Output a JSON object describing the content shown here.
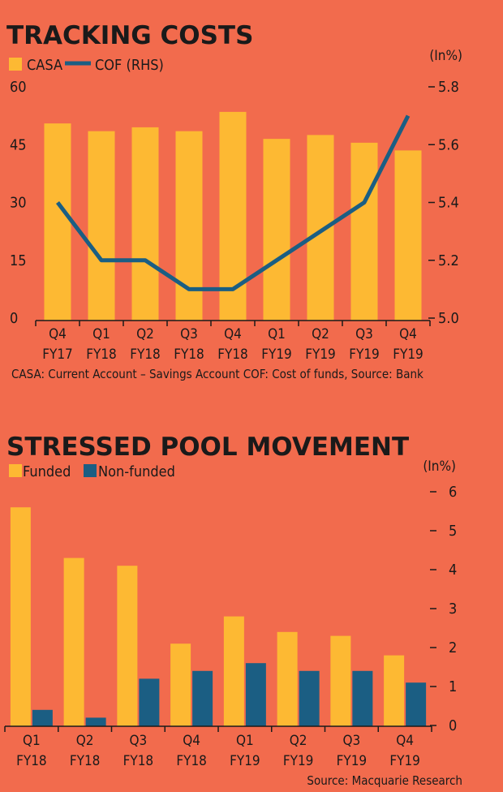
{
  "chart_data": [
    {
      "type": "bar",
      "title": "TRACKING COSTS",
      "unit": "(In%)",
      "categories": [
        [
          "Q4",
          "FY17"
        ],
        [
          "Q1",
          "FY18"
        ],
        [
          "Q2",
          "FY18"
        ],
        [
          "Q3",
          "FY18"
        ],
        [
          "Q4",
          "FY18"
        ],
        [
          "Q1",
          "FY19"
        ],
        [
          "Q2",
          "FY19"
        ],
        [
          "Q3",
          "FY19"
        ],
        [
          "Q4",
          "FY19"
        ]
      ],
      "series": [
        {
          "name": "CASA",
          "type": "bar",
          "axis": "left",
          "color": "#FDB933",
          "values": [
            50.5,
            48.5,
            49.5,
            48.5,
            53.5,
            46.5,
            47.5,
            45.5,
            43.5
          ]
        },
        {
          "name": "COF (RHS)",
          "type": "line",
          "axis": "right",
          "color": "#1B5E83",
          "values": [
            5.4,
            5.2,
            5.2,
            5.1,
            5.1,
            5.2,
            5.3,
            5.4,
            5.7
          ]
        }
      ],
      "y_left": {
        "ticks": [
          "0",
          "15",
          "30",
          "45",
          "60"
        ],
        "range": [
          0,
          60
        ]
      },
      "y_right": {
        "ticks": [
          "5.0",
          "5.2",
          "5.4",
          "5.6",
          "5.8"
        ],
        "range": [
          5.0,
          5.8
        ]
      },
      "note": "CASA: Current Account – Savings Account COF: Cost of funds, Source: Bank"
    },
    {
      "type": "bar",
      "title": "STRESSED POOL MOVEMENT",
      "unit": "(In%)",
      "categories": [
        [
          "Q1",
          "FY18"
        ],
        [
          "Q2",
          "FY18"
        ],
        [
          "Q3",
          "FY18"
        ],
        [
          "Q4",
          "FY18"
        ],
        [
          "Q1",
          "FY19"
        ],
        [
          "Q2",
          "FY19"
        ],
        [
          "Q3",
          "FY19"
        ],
        [
          "Q4",
          "FY19"
        ]
      ],
      "series": [
        {
          "name": "Funded",
          "color": "#FDB933",
          "values": [
            5.6,
            4.3,
            4.1,
            2.1,
            2.8,
            2.4,
            2.3,
            1.8
          ]
        },
        {
          "name": "Non-funded",
          "color": "#1B5E83",
          "values": [
            0.4,
            0.2,
            1.2,
            1.4,
            1.6,
            1.4,
            1.4,
            1.1
          ]
        }
      ],
      "y_right": {
        "ticks": [
          "0",
          "1",
          "2",
          "3",
          "4",
          "5",
          "6"
        ],
        "range": [
          0,
          6
        ]
      },
      "source": "Source: Macquarie Research"
    }
  ]
}
